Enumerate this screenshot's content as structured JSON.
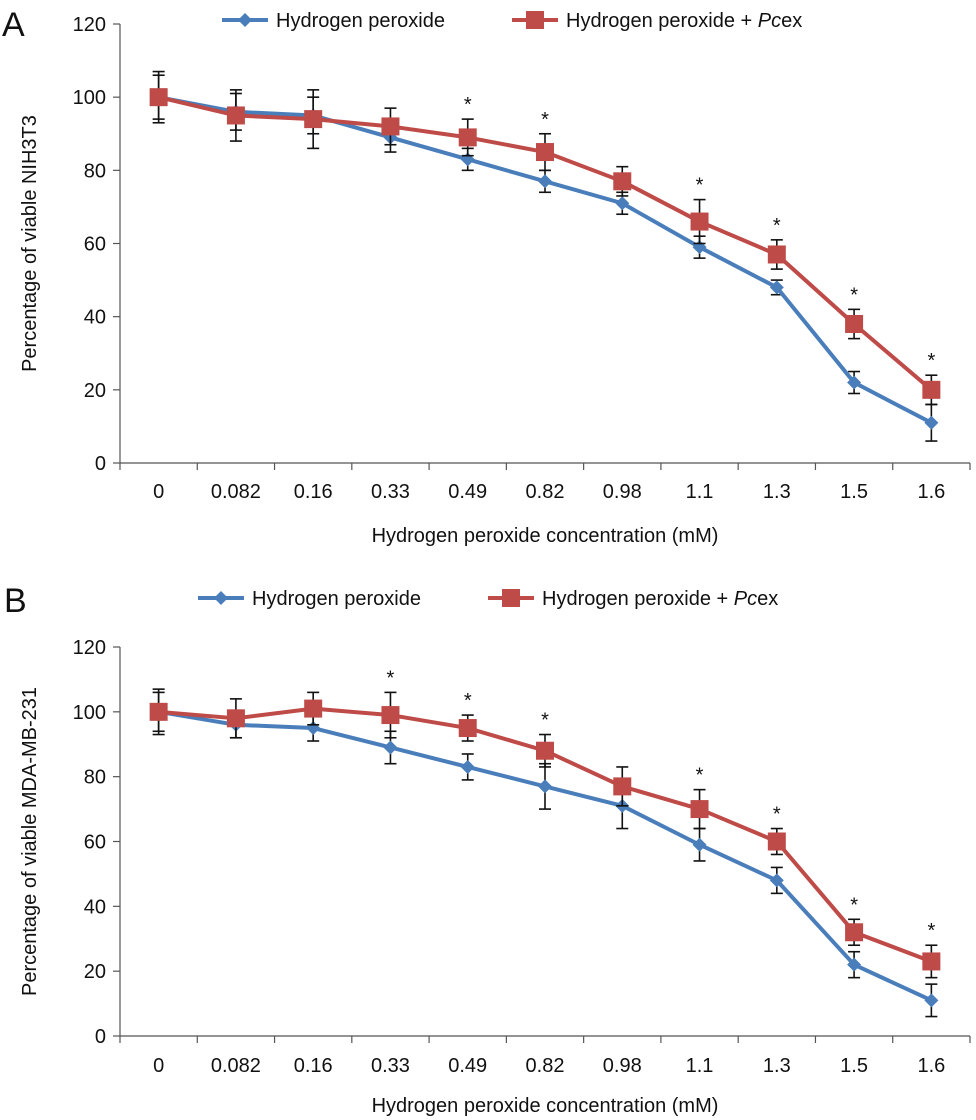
{
  "chart_data": [
    {
      "panel": "A",
      "type": "line",
      "categories": [
        "0",
        "0.082",
        "0.16",
        "0.33",
        "0.49",
        "0.82",
        "0.98",
        "1.1",
        "1.3",
        "1.5",
        "1.6"
      ],
      "xlabel": "Hydrogen peroxide concentration (mM)",
      "ylabel": "Percentage of viable NIH3T3",
      "ylim": [
        0,
        120
      ],
      "yticks": [
        0,
        20,
        40,
        60,
        80,
        100,
        120
      ],
      "legend": {
        "position": "top",
        "entries": [
          {
            "text": "Hydrogen peroxide",
            "italic": ""
          },
          {
            "text": "Hydrogen peroxide + ",
            "italic": "Pc",
            "suffix": "ex"
          }
        ]
      },
      "series": [
        {
          "name": "Hydrogen peroxide",
          "color": "#4a7ebb",
          "marker": "diamond",
          "values": [
            100,
            96,
            95,
            89,
            83,
            77,
            71,
            59,
            48,
            22,
            11
          ],
          "errors": [
            6,
            5,
            5,
            4,
            3,
            3,
            3,
            3,
            2,
            3,
            5
          ]
        },
        {
          "name": "Hydrogen peroxide + Pcex",
          "color": "#be4b48",
          "marker": "square",
          "values": [
            100,
            95,
            94,
            92,
            89,
            85,
            77,
            66,
            57,
            38,
            20
          ],
          "errors": [
            7,
            7,
            8,
            5,
            5,
            5,
            4,
            6,
            4,
            4,
            4
          ]
        }
      ],
      "significance": {
        "marker": "*",
        "categories": [
          "0.49",
          "0.82",
          "1.1",
          "1.3",
          "1.5",
          "1.6"
        ]
      }
    },
    {
      "panel": "B",
      "type": "line",
      "categories": [
        "0",
        "0.082",
        "0.16",
        "0.33",
        "0.49",
        "0.82",
        "0.98",
        "1.1",
        "1.3",
        "1.5",
        "1.6"
      ],
      "xlabel": "Hydrogen peroxide concentration (mM)",
      "ylabel": "Percentage of viable MDA-MB-231",
      "ylim": [
        0,
        120
      ],
      "yticks": [
        0,
        20,
        40,
        60,
        80,
        100,
        120
      ],
      "legend": {
        "position": "top",
        "entries": [
          {
            "text": "Hydrogen peroxide",
            "italic": ""
          },
          {
            "text": "Hydrogen peroxide + ",
            "italic": "Pc",
            "suffix": "ex"
          }
        ]
      },
      "series": [
        {
          "name": "Hydrogen peroxide",
          "color": "#4a7ebb",
          "marker": "diamond",
          "values": [
            100,
            96,
            95,
            89,
            83,
            77,
            71,
            59,
            48,
            22,
            11
          ],
          "errors": [
            6,
            4,
            4,
            5,
            4,
            7,
            7,
            5,
            4,
            4,
            5
          ]
        },
        {
          "name": "Hydrogen peroxide + Pcex",
          "color": "#be4b48",
          "marker": "square",
          "values": [
            100,
            98,
            101,
            99,
            95,
            88,
            77,
            70,
            60,
            32,
            23
          ],
          "errors": [
            7,
            6,
            5,
            7,
            4,
            5,
            6,
            6,
            4,
            4,
            5
          ]
        }
      ],
      "significance": {
        "marker": "*",
        "categories": [
          "0.33",
          "0.49",
          "0.82",
          "1.1",
          "1.3",
          "1.5",
          "1.6"
        ]
      }
    }
  ]
}
